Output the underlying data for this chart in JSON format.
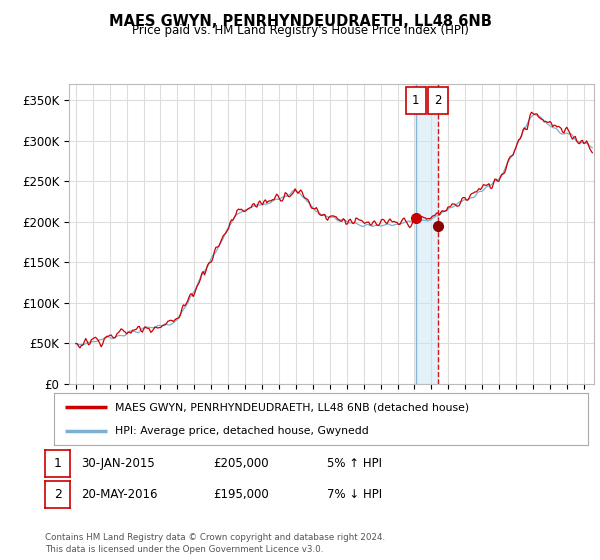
{
  "title": "MAES GWYN, PENRHYNDEUDRAETH, LL48 6NB",
  "subtitle": "Price paid vs. HM Land Registry's House Price Index (HPI)",
  "ylabel_ticks": [
    "£0",
    "£50K",
    "£100K",
    "£150K",
    "£200K",
    "£250K",
    "£300K",
    "£350K"
  ],
  "ylabel_vals": [
    0,
    50000,
    100000,
    150000,
    200000,
    250000,
    300000,
    350000
  ],
  "ylim": [
    0,
    370000
  ],
  "legend1_label": "MAES GWYN, PENRHYNDEUDRAETH, LL48 6NB (detached house)",
  "legend2_label": "HPI: Average price, detached house, Gwynedd",
  "legend1_color": "#cc0000",
  "legend2_color": "#7ab0d4",
  "annotation1_date": "30-JAN-2015",
  "annotation1_price": "£205,000",
  "annotation1_hpi": "5% ↑ HPI",
  "annotation2_date": "20-MAY-2016",
  "annotation2_price": "£195,000",
  "annotation2_hpi": "7% ↓ HPI",
  "footer": "Contains HM Land Registry data © Crown copyright and database right 2024.\nThis data is licensed under the Open Government Licence v3.0.",
  "sale1_x": 2015.08,
  "sale2_x": 2016.38,
  "sale1_y": 205000,
  "sale2_y": 195000,
  "vline1_x": 2015.08,
  "vline2_x": 2016.38,
  "background_color": "#ffffff",
  "grid_color": "#dddddd",
  "xmin": 1994.6,
  "xmax": 2025.6
}
